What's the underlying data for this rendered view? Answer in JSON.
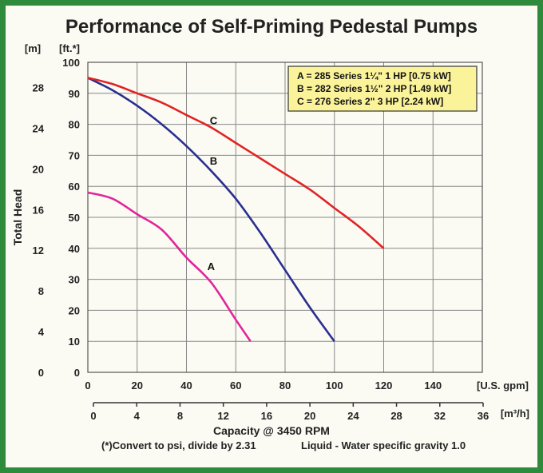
{
  "chart_data": {
    "type": "line",
    "title": "Performance of Self-Priming Pedestal Pumps",
    "xlabel": "Capacity @ 3450 RPM",
    "ylabel": "Total Head",
    "x_unit_primary": "[U.S. gpm]",
    "x_unit_secondary": "[m³/h]",
    "y_unit_ft": "[ft.*]",
    "y_unit_m": "[m]",
    "xlim": [
      0,
      160
    ],
    "ylim": [
      0,
      100
    ],
    "x_ticks": [
      "0",
      "20",
      "40",
      "60",
      "80",
      "100",
      "120",
      "140"
    ],
    "x_ticks_m3h": [
      "0",
      "4",
      "8",
      "12",
      "16",
      "20",
      "24",
      "28",
      "32",
      "36"
    ],
    "y_ticks_ft": [
      "0",
      "10",
      "20",
      "30",
      "40",
      "50",
      "60",
      "70",
      "80",
      "90",
      "100"
    ],
    "y_ticks_m": [
      "0",
      "4",
      "8",
      "12",
      "16",
      "20",
      "24",
      "28"
    ],
    "grid": true,
    "legend_position": "top-right",
    "legend": [
      "A = 285 Series 1¼\" 1 HP [0.75 kW]",
      "B = 282 Series 1½\" 2 HP [1.49 kW]",
      "C = 276 Series 2\" 3 HP [2.24 kW]"
    ],
    "series": [
      {
        "name": "A",
        "color": "#e0269a",
        "x": [
          0,
          10,
          20,
          30,
          40,
          50,
          60,
          66
        ],
        "y": [
          58,
          56,
          51,
          46,
          37,
          29,
          17,
          10
        ]
      },
      {
        "name": "B",
        "color": "#2a2f8f",
        "x": [
          0,
          10,
          20,
          30,
          40,
          50,
          60,
          70,
          80,
          90,
          100
        ],
        "y": [
          95,
          91,
          86,
          80,
          73,
          65,
          56,
          45,
          33,
          21,
          10
        ]
      },
      {
        "name": "C",
        "color": "#e02424",
        "x": [
          0,
          10,
          20,
          30,
          40,
          50,
          60,
          70,
          80,
          90,
          100,
          110,
          120
        ],
        "y": [
          95,
          93,
          90,
          87,
          83,
          79,
          74,
          69,
          64,
          59,
          53,
          47,
          40
        ]
      }
    ],
    "footnote": "(*)Convert to psi, divide by 2.31",
    "footnote2": "Liquid - Water specific gravity 1.0"
  },
  "colors": {
    "background_border": "#2e8b3c",
    "panel": "#fbfbf4",
    "legend_fill": "#fbf39a",
    "grid": "#888888"
  }
}
